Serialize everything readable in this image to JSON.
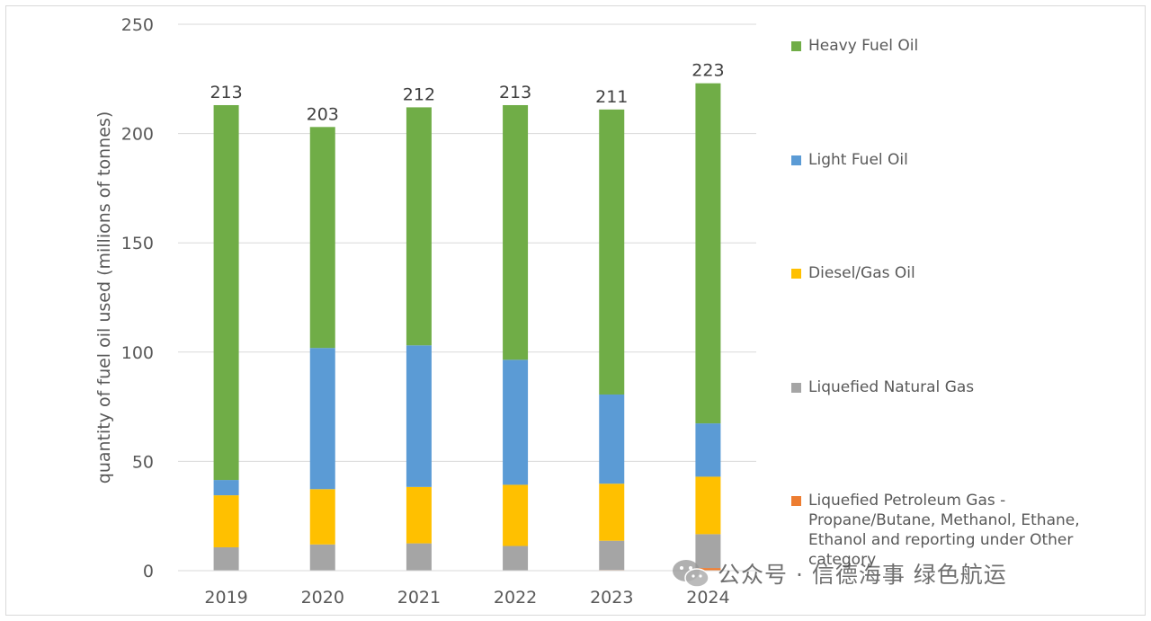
{
  "chart_data": {
    "type": "bar",
    "stacked": true,
    "categories": [
      "2019",
      "2020",
      "2021",
      "2022",
      "2023",
      "2024"
    ],
    "ylabel": "quantity of fuel oil used (millions of tonnes)",
    "xlabel": "",
    "title": "",
    "ylim": [
      0,
      250
    ],
    "yticks": [
      "0",
      "50",
      "100",
      "150",
      "200",
      "250"
    ],
    "grid": true,
    "legend_position": "right",
    "totals": [
      "213",
      "203",
      "212",
      "213",
      "211",
      "223"
    ],
    "series": [
      {
        "name": "Liquefied Petroleum Gas - Propane/Butane, Methanol, Ethane, Ethanol and reporting under Other category",
        "color": "#ed7d31",
        "values": [
          0.2,
          0.2,
          0.2,
          0.2,
          0.3,
          1.2
        ]
      },
      {
        "name": "Liquefied Natural Gas",
        "color": "#a5a5a5",
        "values": [
          10.5,
          11.8,
          12.3,
          11.1,
          13.4,
          15.5
        ]
      },
      {
        "name": "Diesel/Gas Oil",
        "color": "#ffc000",
        "values": [
          23.8,
          25.3,
          25.8,
          28.0,
          26.1,
          26.3
        ]
      },
      {
        "name": "Light Fuel Oil",
        "color": "#5b9bd5",
        "values": [
          7.0,
          64.6,
          64.8,
          57.2,
          40.8,
          24.4
        ]
      },
      {
        "name": "Heavy Fuel Oil",
        "color": "#70ad47",
        "values": [
          171.5,
          101.1,
          108.9,
          116.5,
          130.4,
          155.6
        ]
      }
    ]
  },
  "legend": {
    "items": [
      {
        "label": "Heavy Fuel Oil",
        "color": "#70ad47"
      },
      {
        "label": "Light Fuel Oil",
        "color": "#5b9bd5"
      },
      {
        "label": "Diesel/Gas Oil",
        "color": "#ffc000"
      },
      {
        "label": "Liquefied Natural Gas",
        "color": "#a5a5a5"
      },
      {
        "label": "Liquefied Petroleum Gas - Propane/Butane, Methanol, Ethane, Ethanol and reporting under Other category",
        "color": "#ed7d31"
      }
    ]
  },
  "watermark": {
    "text": "公众号 · 信德海事 绿色航运",
    "icon": "wechat-icon"
  }
}
